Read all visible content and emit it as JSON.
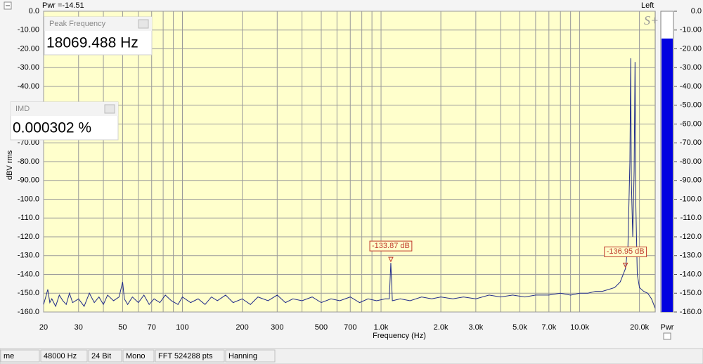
{
  "header": {
    "power_label": "Pwr =-14.51",
    "channel": "Left",
    "logo": "S+"
  },
  "chart_data": {
    "type": "line",
    "color": "#1f2a8a",
    "grid": true,
    "xscale": "log",
    "xlabel": "Frequency (Hz)",
    "ylabel": "dBV rms",
    "xlim": [
      20,
      24000
    ],
    "ylim": [
      -160,
      0
    ],
    "xticks": [
      20,
      30,
      50,
      70,
      100,
      200,
      300,
      500,
      700,
      {
        "value": 1000,
        "label": "1.0k"
      },
      {
        "value": 2000,
        "label": "2.0k"
      },
      {
        "value": 3000,
        "label": "3.0k"
      },
      {
        "value": 5000,
        "label": "5.0k"
      },
      {
        "value": 7000,
        "label": "7.0k"
      },
      {
        "value": 10000,
        "label": "10.0k"
      },
      {
        "value": 20000,
        "label": "20.0k"
      }
    ],
    "xminor": [
      40,
      60,
      80,
      90,
      400,
      600,
      800,
      900,
      4000,
      6000,
      8000,
      9000
    ],
    "yticks": [
      {
        "value": 0,
        "label": "0.0"
      },
      {
        "value": -10,
        "label": "-10.00"
      },
      {
        "value": -20,
        "label": "-20.00"
      },
      {
        "value": -30,
        "label": "-30.00"
      },
      {
        "value": -40,
        "label": "-40.00"
      },
      {
        "value": -50,
        "label": "-50.00"
      },
      {
        "value": -60,
        "label": "-60.00"
      },
      {
        "value": -70,
        "label": "-70.00"
      },
      {
        "value": -80,
        "label": "-80.00"
      },
      {
        "value": -90,
        "label": "-90.00"
      },
      {
        "value": -100,
        "label": "-100.0"
      },
      {
        "value": -110,
        "label": "-110.0"
      },
      {
        "value": -120,
        "label": "-120.0"
      },
      {
        "value": -130,
        "label": "-130.0"
      },
      {
        "value": -140,
        "label": "-140.0"
      },
      {
        "value": -150,
        "label": "-150.0"
      },
      {
        "value": -160,
        "label": "-160.0"
      }
    ],
    "x": [
      20,
      20.5,
      21,
      21.5,
      22,
      23,
      24,
      25,
      26,
      27,
      28,
      30,
      32,
      34,
      36,
      38,
      40,
      42,
      45,
      48,
      50,
      51,
      53,
      56,
      60,
      64,
      68,
      72,
      77,
      82,
      88,
      95,
      100,
      110,
      120,
      130,
      140,
      150,
      165,
      180,
      200,
      220,
      240,
      270,
      300,
      330,
      360,
      400,
      450,
      500,
      560,
      620,
      700,
      780,
      860,
      950,
      1050,
      1100,
      1120,
      1140,
      1250,
      1400,
      1600,
      1800,
      2000,
      2300,
      2600,
      3000,
      3500,
      4000,
      4600,
      5300,
      6000,
      7000,
      8000,
      9000,
      10000,
      11000,
      12000,
      13000,
      14000,
      15000,
      16000,
      17000,
      17500,
      17900,
      18069,
      18200,
      18500,
      18800,
      19000,
      19150,
      19500,
      20000,
      21000,
      22000,
      23000,
      24000
    ],
    "values": [
      -156,
      -152,
      -148,
      -155,
      -153,
      -157,
      -151,
      -154,
      -156,
      -150,
      -155,
      -153,
      -157,
      -150,
      -155,
      -152,
      -156,
      -151,
      -154,
      -152,
      -144,
      -153,
      -156,
      -152,
      -155,
      -151,
      -156,
      -153,
      -155,
      -151,
      -154,
      -156,
      -152,
      -155,
      -153,
      -156,
      -152,
      -154,
      -151,
      -155,
      -153,
      -156,
      -152,
      -154,
      -151,
      -155,
      -153,
      -154,
      -152,
      -155,
      -153,
      -154,
      -152,
      -155,
      -153,
      -154,
      -153,
      -153,
      -133.87,
      -154,
      -153,
      -154,
      -152,
      -153,
      -152,
      -153,
      -152,
      -153,
      -151,
      -152,
      -151,
      -152,
      -151,
      -151,
      -150,
      -151,
      -150,
      -150,
      -149,
      -149,
      -148,
      -147,
      -144,
      -136.95,
      -125,
      -80,
      -25,
      -90,
      -120,
      -85,
      -27,
      -100,
      -140,
      -147,
      -149,
      -150,
      -153,
      -158
    ],
    "markers": [
      {
        "x": 1120,
        "y": -133.87,
        "label": "-133.87 dB"
      },
      {
        "x": 17000,
        "y": -136.95,
        "label": "-136.95 dB"
      }
    ]
  },
  "meter": {
    "label": "Pwr",
    "value": -14.51,
    "color": "#0000e0",
    "ylim": [
      -160,
      0
    ],
    "yticks": [
      {
        "value": 0,
        "label": "0.0"
      },
      {
        "value": -10,
        "label": "-10.00"
      },
      {
        "value": -20,
        "label": "-20.00"
      },
      {
        "value": -30,
        "label": "-30.00"
      },
      {
        "value": -40,
        "label": "-40.00"
      },
      {
        "value": -50,
        "label": "-50.00"
      },
      {
        "value": -60,
        "label": "-60.00"
      },
      {
        "value": -70,
        "label": "-70.00"
      },
      {
        "value": -80,
        "label": "-80.00"
      },
      {
        "value": -90,
        "label": "-90.00"
      },
      {
        "value": -100,
        "label": "-100.0"
      },
      {
        "value": -110,
        "label": "-110.0"
      },
      {
        "value": -120,
        "label": "-120.0"
      },
      {
        "value": -130,
        "label": "-130.0"
      },
      {
        "value": -140,
        "label": "-140.0"
      },
      {
        "value": -150,
        "label": "-150.0"
      },
      {
        "value": -160,
        "label": "-160.0"
      }
    ]
  },
  "panels": [
    {
      "title": "Peak Frequency",
      "value": "18069.488 Hz"
    },
    {
      "title": "IMD",
      "value": "0.000302 %"
    }
  ],
  "status_bar": [
    "me",
    "48000 Hz",
    "24 Bit",
    "Mono",
    "FFT 524288 pts",
    "Hanning"
  ]
}
